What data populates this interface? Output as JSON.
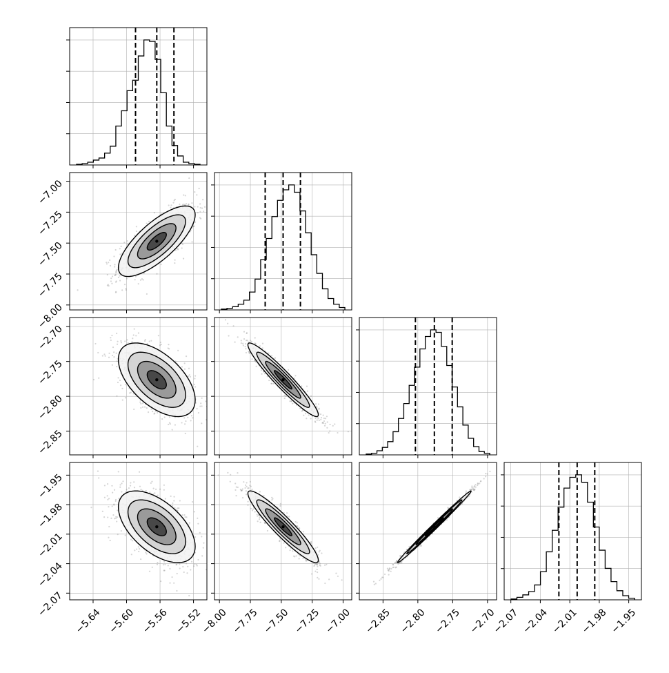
{
  "chart_data": {
    "type": "corner",
    "parameters": [
      {
        "id": "p0",
        "range": [
          -5.668,
          -5.504
        ],
        "ticks": [
          -5.64,
          -5.6,
          -5.56,
          -5.52
        ],
        "tick_labels": [
          "−5.64",
          "−5.60",
          "−5.56",
          "−5.52"
        ],
        "quantiles": [
          -5.5893,
          -5.5639,
          -5.5434
        ],
        "hist_values": [
          1,
          2,
          4,
          7,
          10,
          17,
          27,
          56,
          78,
          107,
          122,
          157,
          180,
          178,
          152,
          104,
          56,
          28,
          13,
          4,
          2,
          1
        ]
      },
      {
        "id": "p1",
        "range": [
          -8.04,
          -6.93
        ],
        "ticks": [
          -8.0,
          -7.75,
          -7.5,
          -7.25,
          -7.0
        ],
        "tick_labels": [
          "−8.00",
          "−7.75",
          "−7.50",
          "−7.25",
          "−7.00"
        ],
        "quantiles": [
          -7.63,
          -7.485,
          -7.345
        ],
        "hist_values": [
          1,
          2,
          4,
          7,
          12,
          22,
          38,
          62,
          88,
          115,
          135,
          148,
          154,
          145,
          122,
          95,
          68,
          45,
          26,
          14,
          7,
          3
        ]
      },
      {
        "id": "p2",
        "range": [
          -2.884,
          -2.687
        ],
        "ticks": [
          -2.85,
          -2.8,
          -2.75,
          -2.7
        ],
        "tick_labels": [
          "−2.85",
          "−2.80",
          "−2.75",
          "−2.70"
        ],
        "quantiles": [
          -2.8035,
          -2.7763,
          -2.7507
        ],
        "hist_values": [
          1,
          2,
          5,
          9,
          16,
          28,
          44,
          62,
          84,
          106,
          128,
          143,
          151,
          148,
          131,
          108,
          82,
          58,
          36,
          20,
          10,
          4,
          2
        ]
      },
      {
        "id": "p3",
        "range": [
          -2.0768,
          -1.9371
        ],
        "ticks": [
          -2.07,
          -2.04,
          -2.01,
          -1.98,
          -1.95
        ],
        "tick_labels": [
          "−2.07",
          "−2.04",
          "−2.01",
          "−1.98",
          "−1.95"
        ],
        "quantiles": [
          -2.0211,
          -2.0025,
          -1.9846
        ],
        "hist_values": [
          1,
          3,
          6,
          10,
          18,
          34,
          58,
          84,
          112,
          135,
          148,
          151,
          142,
          118,
          88,
          60,
          38,
          22,
          11,
          5,
          2
        ]
      }
    ],
    "correlations": {
      "1_0": 0.75,
      "2_0": -0.55,
      "2_1": -0.95,
      "3_0": -0.55,
      "3_1": -0.93,
      "3_2": 0.995
    },
    "contour_levels": [
      "0.5",
      "1.0",
      "1.5",
      "2.0"
    ],
    "colors": {
      "ink": "#000000",
      "grid": "#b0b0b0",
      "scatter": "#888888",
      "background": "#ffffff"
    },
    "grid": true,
    "xlabel": "",
    "ylabel": "",
    "title": ""
  }
}
